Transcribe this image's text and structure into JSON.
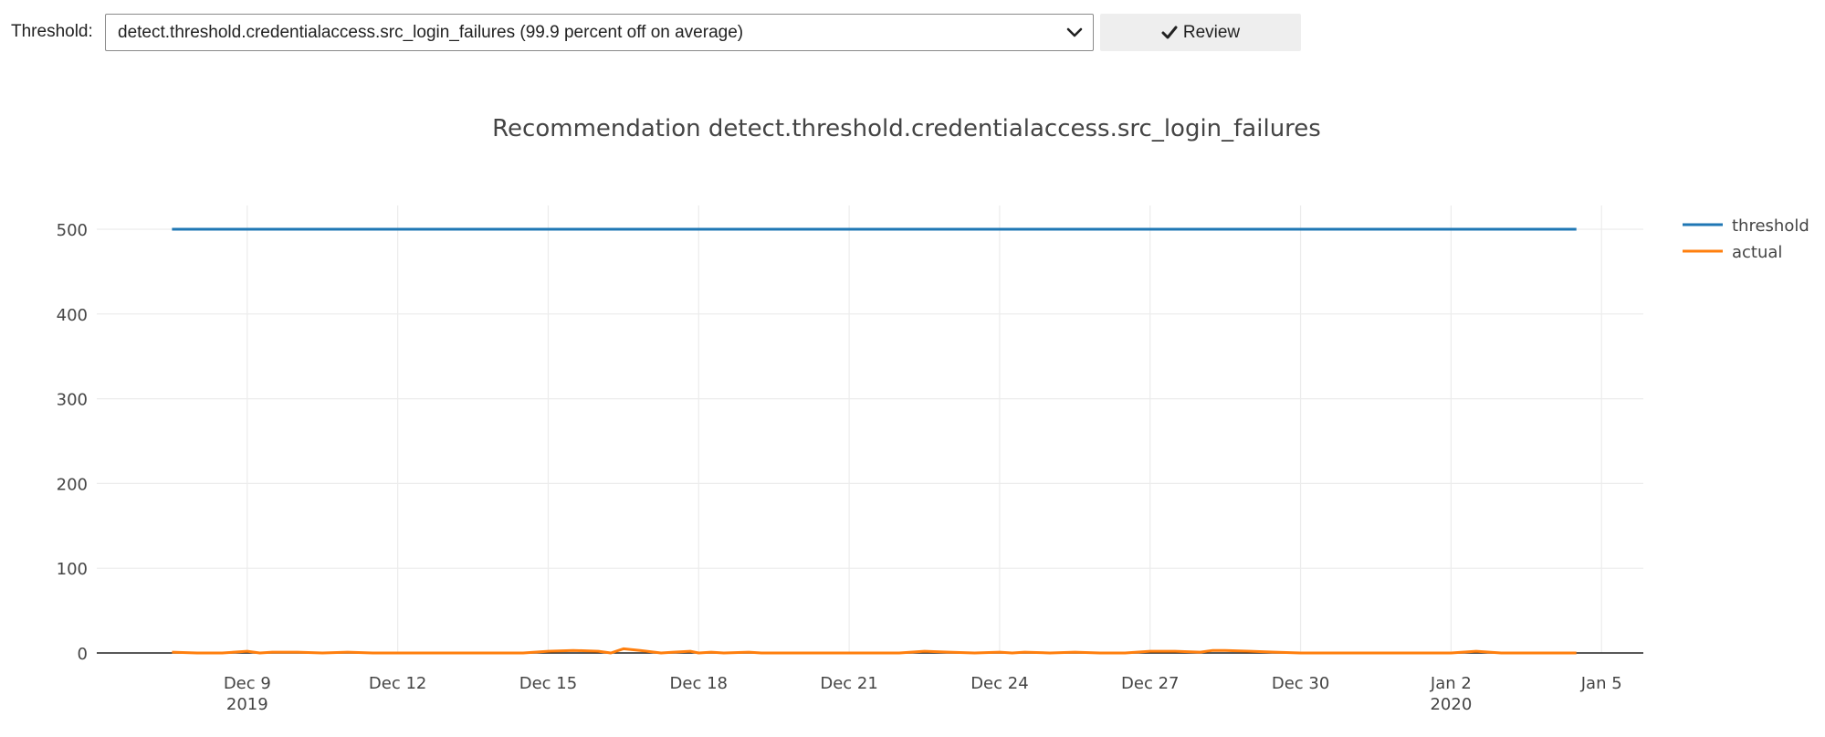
{
  "toolbar": {
    "threshold_label": "Threshold:",
    "selected_option": "detect.threshold.credentialaccess.src_login_failures (99.9 percent off on average)",
    "review_label": "Review",
    "review_icon": "check-icon",
    "dropdown_icon": "chevron-down-icon"
  },
  "chart_data": {
    "type": "line",
    "title": "Recommendation detect.threshold.credentialaccess.src_login_failures",
    "xlabel": "",
    "ylabel": "",
    "x_type": "date",
    "xlim": [
      "2019-12-06",
      "2020-01-05T20:00"
    ],
    "ylim": [
      0,
      528
    ],
    "grid": true,
    "legend_position": "top-right",
    "y_ticks": [
      0,
      100,
      200,
      300,
      400,
      500
    ],
    "x_ticks": [
      {
        "date": "2019-12-09",
        "label": "Dec 9",
        "sublabel": "2019"
      },
      {
        "date": "2019-12-12",
        "label": "Dec 12",
        "sublabel": ""
      },
      {
        "date": "2019-12-15",
        "label": "Dec 15",
        "sublabel": ""
      },
      {
        "date": "2019-12-18",
        "label": "Dec 18",
        "sublabel": ""
      },
      {
        "date": "2019-12-21",
        "label": "Dec 21",
        "sublabel": ""
      },
      {
        "date": "2019-12-24",
        "label": "Dec 24",
        "sublabel": ""
      },
      {
        "date": "2019-12-27",
        "label": "Dec 27",
        "sublabel": ""
      },
      {
        "date": "2019-12-30",
        "label": "Dec 30",
        "sublabel": ""
      },
      {
        "date": "2020-01-02",
        "label": "Jan 2",
        "sublabel": "2020"
      },
      {
        "date": "2020-01-05",
        "label": "Jan 5",
        "sublabel": ""
      }
    ],
    "series": [
      {
        "name": "threshold",
        "color": "#1f77b4",
        "points": [
          [
            "2019-12-07T12:00",
            500
          ],
          [
            "2020-01-04T12:00",
            500
          ]
        ]
      },
      {
        "name": "actual",
        "color": "#ff7f0e",
        "points": [
          [
            "2019-12-07T12:00",
            1
          ],
          [
            "2019-12-08T00:00",
            0
          ],
          [
            "2019-12-08T12:00",
            0
          ],
          [
            "2019-12-09T00:00",
            2
          ],
          [
            "2019-12-09T06:00",
            0
          ],
          [
            "2019-12-09T12:00",
            1
          ],
          [
            "2019-12-10T00:00",
            1
          ],
          [
            "2019-12-10T12:00",
            0
          ],
          [
            "2019-12-11T00:00",
            1
          ],
          [
            "2019-12-11T12:00",
            0
          ],
          [
            "2019-12-12T00:00",
            0
          ],
          [
            "2019-12-13T00:00",
            0
          ],
          [
            "2019-12-14T00:00",
            0
          ],
          [
            "2019-12-14T12:00",
            0
          ],
          [
            "2019-12-15T00:00",
            2
          ],
          [
            "2019-12-15T12:00",
            3
          ],
          [
            "2019-12-16T00:00",
            2
          ],
          [
            "2019-12-16T06:00",
            0
          ],
          [
            "2019-12-16T12:00",
            5
          ],
          [
            "2019-12-16T20:00",
            3
          ],
          [
            "2019-12-17T06:00",
            0
          ],
          [
            "2019-12-17T12:00",
            1
          ],
          [
            "2019-12-17T20:00",
            2
          ],
          [
            "2019-12-18T00:00",
            0
          ],
          [
            "2019-12-18T06:00",
            1
          ],
          [
            "2019-12-18T12:00",
            0
          ],
          [
            "2019-12-19T00:00",
            1
          ],
          [
            "2019-12-19T06:00",
            0
          ],
          [
            "2019-12-19T12:00",
            0
          ],
          [
            "2019-12-20T00:00",
            0
          ],
          [
            "2019-12-21T00:00",
            0
          ],
          [
            "2019-12-22T00:00",
            0
          ],
          [
            "2019-12-22T12:00",
            2
          ],
          [
            "2019-12-23T00:00",
            1
          ],
          [
            "2019-12-23T12:00",
            0
          ],
          [
            "2019-12-24T00:00",
            1
          ],
          [
            "2019-12-24T06:00",
            0
          ],
          [
            "2019-12-24T12:00",
            1
          ],
          [
            "2019-12-25T00:00",
            0
          ],
          [
            "2019-12-25T12:00",
            1
          ],
          [
            "2019-12-26T00:00",
            0
          ],
          [
            "2019-12-26T12:00",
            0
          ],
          [
            "2019-12-27T00:00",
            2
          ],
          [
            "2019-12-27T12:00",
            2
          ],
          [
            "2019-12-28T00:00",
            1
          ],
          [
            "2019-12-28T06:00",
            3
          ],
          [
            "2019-12-28T12:00",
            3
          ],
          [
            "2019-12-29T00:00",
            2
          ],
          [
            "2019-12-29T12:00",
            1
          ],
          [
            "2019-12-30T00:00",
            0
          ],
          [
            "2019-12-31T00:00",
            0
          ],
          [
            "2020-01-01T00:00",
            0
          ],
          [
            "2020-01-02T00:00",
            0
          ],
          [
            "2020-01-02T12:00",
            2
          ],
          [
            "2020-01-03T00:00",
            0
          ],
          [
            "2020-01-03T12:00",
            0
          ],
          [
            "2020-01-04T00:00",
            0
          ],
          [
            "2020-01-04T12:00",
            0
          ]
        ]
      }
    ]
  }
}
